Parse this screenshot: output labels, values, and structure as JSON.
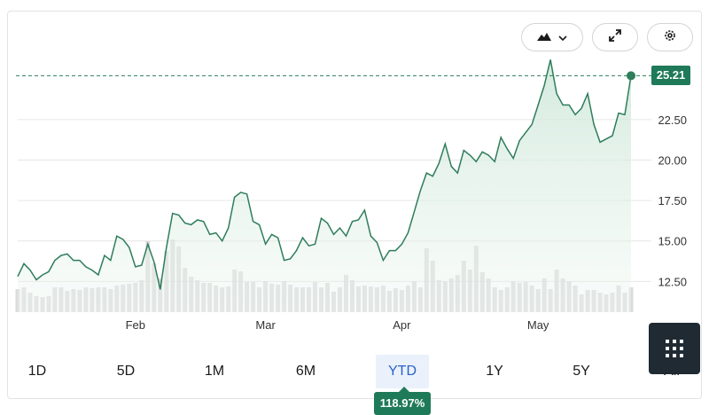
{
  "toolbar": {
    "chart_type_icon": "mountain-area-icon",
    "chevron_icon": "chevron-down-icon",
    "expand_icon": "expand-arrows-icon",
    "settings_icon": "gear-icon"
  },
  "ranges": {
    "tabs": [
      "1D",
      "5D",
      "1M",
      "6M",
      "YTD",
      "1Y",
      "5Y",
      "All"
    ],
    "active": "YTD",
    "performance": "118.97%"
  },
  "last_price_label": "25.21",
  "grid_menu_icon": "grid-menu-icon",
  "colors": {
    "line": "#2e7d5b",
    "fill": "#dcefe4",
    "volume": "#d2d2d2",
    "badge": "#1f7a5a",
    "grid": "#e6e6e6",
    "active_tab_bg": "#eaf1fb",
    "active_tab_text": "#2a62c9"
  },
  "chart_data": {
    "type": "area",
    "title": "",
    "xlabel": "",
    "ylabel": "",
    "ylim": [
      10.6,
      26.6
    ],
    "yticks": [
      12.5,
      15.0,
      17.5,
      20.0,
      22.5
    ],
    "ytick_labels": [
      "12.50",
      "15.00",
      "17.50",
      "20.00",
      "22.50"
    ],
    "x_axis_labels": [
      {
        "label": "Feb",
        "index": 19
      },
      {
        "label": "Mar",
        "index": 40
      },
      {
        "label": "Apr",
        "index": 62
      },
      {
        "label": "May",
        "index": 84
      }
    ],
    "last_value": 25.21,
    "grid": true,
    "series": [
      {
        "values": [
          12.8,
          13.6,
          13.2,
          12.6,
          12.9,
          13.1,
          13.8,
          14.1,
          14.2,
          13.8,
          13.8,
          13.4,
          13.2,
          12.9,
          14.1,
          13.8,
          15.3,
          15.1,
          14.6,
          13.4,
          13.5,
          14.8,
          13.7,
          12.0,
          14.6,
          16.7,
          16.6,
          16.1,
          16.0,
          16.3,
          16.2,
          15.4,
          15.5,
          15.0,
          15.8,
          17.7,
          18.0,
          17.9,
          16.2,
          16.0,
          14.8,
          15.4,
          15.2,
          13.8,
          13.9,
          14.4,
          15.2,
          14.7,
          14.8,
          16.4,
          16.1,
          15.4,
          15.8,
          15.3,
          16.2,
          16.3,
          16.9,
          15.3,
          14.9,
          13.8,
          14.4,
          14.4,
          14.8,
          15.5,
          16.8,
          18.1,
          19.2,
          19.0,
          19.8,
          21.0,
          19.6,
          19.2,
          20.6,
          20.3,
          19.9,
          20.5,
          20.3,
          19.9,
          21.4,
          20.7,
          20.1,
          21.2,
          21.7,
          22.2,
          23.4,
          24.6,
          26.2,
          24.1,
          23.4,
          23.4,
          22.8,
          23.2,
          24.1,
          22.2,
          21.1,
          21.3,
          21.5,
          22.9,
          22.8,
          25.21
        ],
        "volume": [
          26,
          28,
          22,
          18,
          17,
          18,
          28,
          28,
          24,
          26,
          25,
          28,
          27,
          28,
          28,
          26,
          30,
          31,
          32,
          33,
          36,
          80,
          55,
          38,
          69,
          82,
          74,
          50,
          40,
          36,
          33,
          33,
          30,
          28,
          29,
          48,
          46,
          34,
          34,
          28,
          35,
          32,
          31,
          35,
          31,
          28,
          28,
          28,
          34,
          28,
          33,
          23,
          28,
          42,
          36,
          29,
          30,
          29,
          28,
          30,
          24,
          27,
          25,
          30,
          35,
          28,
          72,
          58,
          36,
          35,
          38,
          42,
          58,
          48,
          75,
          45,
          38,
          28,
          25,
          28,
          35,
          33,
          34,
          30,
          26,
          38,
          26,
          48,
          38,
          35,
          30,
          20,
          25,
          25,
          22,
          20,
          22,
          30,
          22,
          28
        ]
      }
    ]
  }
}
